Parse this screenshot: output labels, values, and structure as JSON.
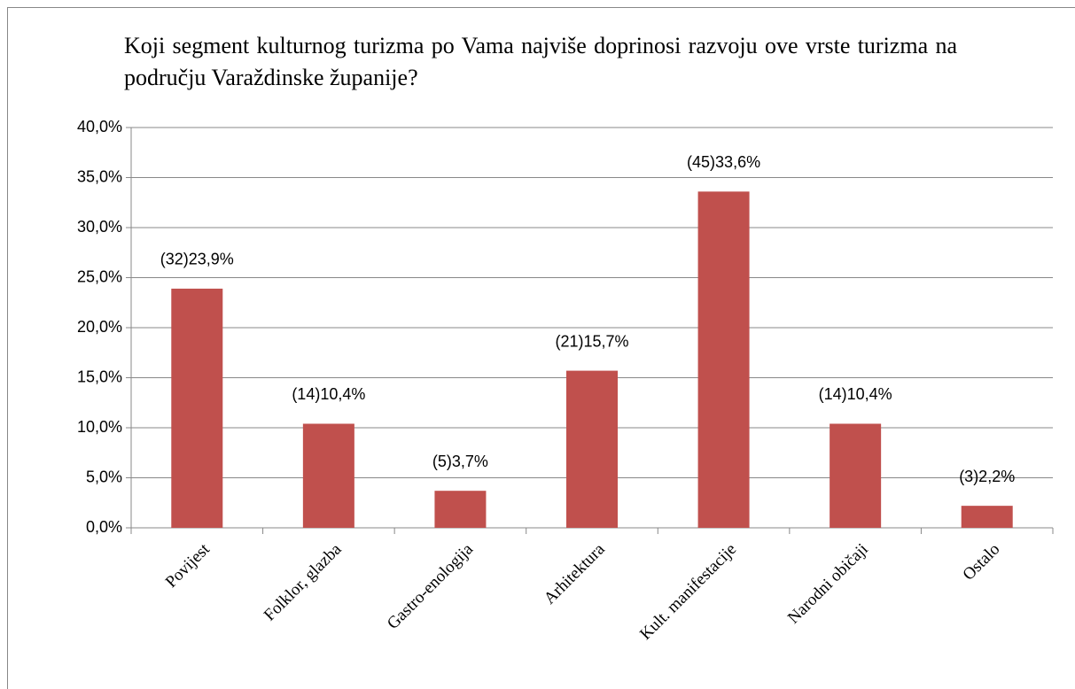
{
  "chart_data": {
    "type": "bar",
    "title": "Koji segment kulturnog turizma po Vama najviše doprinosi razvoju ove vrste turizma na području Varaždinske županije?",
    "categories": [
      "Povijest",
      "Folklor, glazba",
      "Gastro-enologija",
      "Arhitektura",
      "Kult. manifestacije",
      "Narodni običaji",
      "Ostalo"
    ],
    "values": [
      23.9,
      10.4,
      3.7,
      15.7,
      33.6,
      10.4,
      2.2
    ],
    "value_labels": [
      "(32)23,9%",
      "(14)10,4%",
      "(5)3,7%",
      "(21)15,7%",
      "(45)33,6%",
      "(14)10,4%",
      "(3)2,2%"
    ],
    "color": "#c0504d",
    "ylim": [
      0,
      40
    ],
    "yticks": [
      {
        "value": 0,
        "label": "0,0%"
      },
      {
        "value": 5,
        "label": "5,0%"
      },
      {
        "value": 10,
        "label": "10,0%"
      },
      {
        "value": 15,
        "label": "15,0%"
      },
      {
        "value": 20,
        "label": "20,0%"
      },
      {
        "value": 25,
        "label": "25,0%"
      },
      {
        "value": 30,
        "label": "30,0%"
      },
      {
        "value": 35,
        "label": "35,0%"
      },
      {
        "value": 40,
        "label": "40,0%"
      }
    ],
    "grid": true
  }
}
